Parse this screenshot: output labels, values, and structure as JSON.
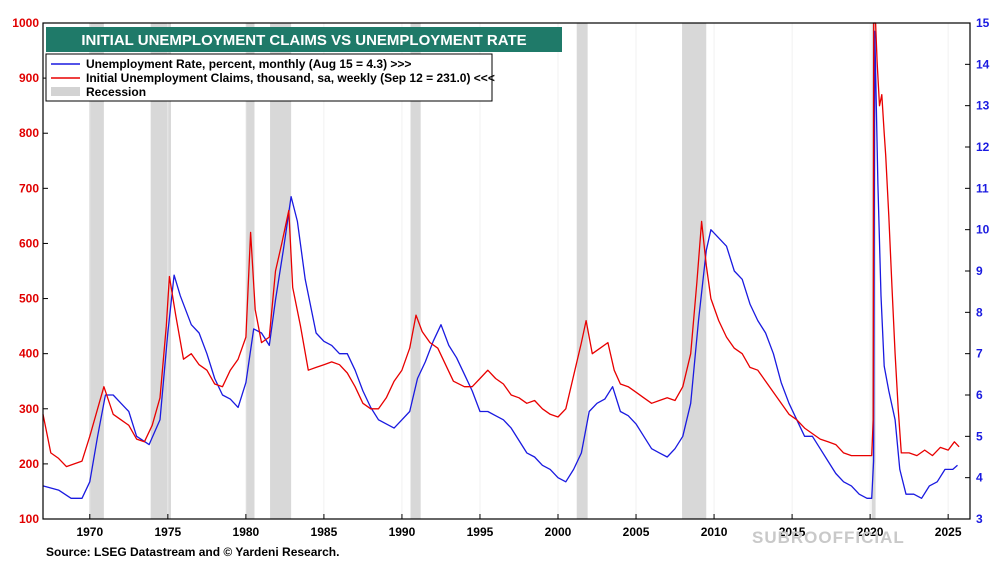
{
  "chart_data": {
    "type": "line",
    "title": "INITIAL UNEMPLOYMENT CLAIMS VS UNEMPLOYMENT RATE",
    "source": "Source: LSEG Datastream and © Yardeni Research.",
    "watermark": "SUBROOFFICIAL",
    "xlim": [
      1967,
      2026.4
    ],
    "ylim_left": [
      100,
      1000
    ],
    "ylim_right": [
      3,
      15
    ],
    "x_ticks": [
      {
        "label": "1970",
        "value": 1970
      },
      {
        "label": "1975",
        "value": 1975
      },
      {
        "label": "1980",
        "value": 1980
      },
      {
        "label": "1985",
        "value": 1985
      },
      {
        "label": "1990",
        "value": 1990
      },
      {
        "label": "1995",
        "value": 1995
      },
      {
        "label": "2000",
        "value": 2000
      },
      {
        "label": "2005",
        "value": 2005
      },
      {
        "label": "2010",
        "value": 2010
      },
      {
        "label": "2015",
        "value": 2015
      },
      {
        "label": "2020",
        "value": 2020
      },
      {
        "label": "2025",
        "value": 2025
      }
    ],
    "y_left_ticks": [
      {
        "label": "100",
        "value": 100
      },
      {
        "label": "200",
        "value": 200
      },
      {
        "label": "300",
        "value": 300
      },
      {
        "label": "400",
        "value": 400
      },
      {
        "label": "500",
        "value": 500
      },
      {
        "label": "600",
        "value": 600
      },
      {
        "label": "700",
        "value": 700
      },
      {
        "label": "800",
        "value": 800
      },
      {
        "label": "900",
        "value": 900
      },
      {
        "label": "1000",
        "value": 1000
      }
    ],
    "y_right_ticks": [
      {
        "label": "3",
        "value": 3
      },
      {
        "label": "4",
        "value": 4
      },
      {
        "label": "5",
        "value": 5
      },
      {
        "label": "6",
        "value": 6
      },
      {
        "label": "7",
        "value": 7
      },
      {
        "label": "8",
        "value": 8
      },
      {
        "label": "9",
        "value": 9
      },
      {
        "label": "10",
        "value": 10
      },
      {
        "label": "11",
        "value": 11
      },
      {
        "label": "12",
        "value": 12
      },
      {
        "label": "13",
        "value": 13
      },
      {
        "label": "14",
        "value": 14
      },
      {
        "label": "15",
        "value": 15
      }
    ],
    "legend": [
      {
        "label": "Unemployment Rate, percent, monthly (Aug 15 = 4.3) >>>",
        "color": "#1a1ae0",
        "kind": "line"
      },
      {
        "label": "Initial Unemployment Claims, thousand, sa, weekly (Sep 12 = 231.0) <<<",
        "color": "#e80000",
        "kind": "line"
      },
      {
        "label": "Recession",
        "color": "#d3d3d3",
        "kind": "band"
      }
    ],
    "recessions": [
      [
        1969.95,
        1970.9
      ],
      [
        1973.9,
        1975.2
      ],
      [
        1980.0,
        1980.55
      ],
      [
        1981.55,
        1982.9
      ],
      [
        1990.55,
        1991.2
      ],
      [
        2001.2,
        2001.9
      ],
      [
        2007.95,
        2009.5
      ],
      [
        2020.1,
        2020.35
      ]
    ],
    "series": [
      {
        "name": "Unemployment Rate, percent, monthly",
        "axis": "right",
        "color": "#1a1ae0",
        "points": [
          [
            1967.0,
            3.8
          ],
          [
            1968.0,
            3.7
          ],
          [
            1968.8,
            3.5
          ],
          [
            1969.5,
            3.5
          ],
          [
            1970.0,
            3.9
          ],
          [
            1970.5,
            5.0
          ],
          [
            1971.0,
            6.0
          ],
          [
            1971.5,
            6.0
          ],
          [
            1972.0,
            5.8
          ],
          [
            1972.5,
            5.6
          ],
          [
            1973.0,
            5.0
          ],
          [
            1973.8,
            4.8
          ],
          [
            1974.5,
            5.4
          ],
          [
            1975.0,
            7.5
          ],
          [
            1975.4,
            8.9
          ],
          [
            1975.8,
            8.4
          ],
          [
            1976.5,
            7.7
          ],
          [
            1977.0,
            7.5
          ],
          [
            1977.5,
            7.0
          ],
          [
            1978.0,
            6.4
          ],
          [
            1978.5,
            6.0
          ],
          [
            1979.0,
            5.9
          ],
          [
            1979.5,
            5.7
          ],
          [
            1980.0,
            6.3
          ],
          [
            1980.5,
            7.6
          ],
          [
            1981.0,
            7.5
          ],
          [
            1981.5,
            7.2
          ],
          [
            1981.9,
            8.3
          ],
          [
            1982.4,
            9.5
          ],
          [
            1982.9,
            10.8
          ],
          [
            1983.3,
            10.2
          ],
          [
            1983.8,
            8.8
          ],
          [
            1984.5,
            7.5
          ],
          [
            1985.0,
            7.3
          ],
          [
            1985.5,
            7.2
          ],
          [
            1986.0,
            7.0
          ],
          [
            1986.5,
            7.0
          ],
          [
            1987.0,
            6.6
          ],
          [
            1987.5,
            6.1
          ],
          [
            1988.0,
            5.7
          ],
          [
            1988.5,
            5.4
          ],
          [
            1989.0,
            5.3
          ],
          [
            1989.5,
            5.2
          ],
          [
            1990.0,
            5.4
          ],
          [
            1990.5,
            5.6
          ],
          [
            1991.0,
            6.4
          ],
          [
            1991.5,
            6.8
          ],
          [
            1992.0,
            7.3
          ],
          [
            1992.5,
            7.7
          ],
          [
            1993.0,
            7.2
          ],
          [
            1993.5,
            6.9
          ],
          [
            1994.0,
            6.5
          ],
          [
            1994.5,
            6.1
          ],
          [
            1995.0,
            5.6
          ],
          [
            1995.5,
            5.6
          ],
          [
            1996.0,
            5.5
          ],
          [
            1996.5,
            5.4
          ],
          [
            1997.0,
            5.2
          ],
          [
            1997.5,
            4.9
          ],
          [
            1998.0,
            4.6
          ],
          [
            1998.5,
            4.5
          ],
          [
            1999.0,
            4.3
          ],
          [
            1999.5,
            4.2
          ],
          [
            2000.0,
            4.0
          ],
          [
            2000.5,
            3.9
          ],
          [
            2001.0,
            4.2
          ],
          [
            2001.5,
            4.6
          ],
          [
            2002.0,
            5.6
          ],
          [
            2002.5,
            5.8
          ],
          [
            2003.0,
            5.9
          ],
          [
            2003.5,
            6.2
          ],
          [
            2004.0,
            5.6
          ],
          [
            2004.5,
            5.5
          ],
          [
            2005.0,
            5.3
          ],
          [
            2005.5,
            5.0
          ],
          [
            2006.0,
            4.7
          ],
          [
            2006.5,
            4.6
          ],
          [
            2007.0,
            4.5
          ],
          [
            2007.5,
            4.7
          ],
          [
            2008.0,
            5.0
          ],
          [
            2008.5,
            5.8
          ],
          [
            2009.0,
            7.8
          ],
          [
            2009.5,
            9.5
          ],
          [
            2009.8,
            10.0
          ],
          [
            2010.3,
            9.8
          ],
          [
            2010.8,
            9.6
          ],
          [
            2011.3,
            9.0
          ],
          [
            2011.8,
            8.8
          ],
          [
            2012.3,
            8.2
          ],
          [
            2012.8,
            7.8
          ],
          [
            2013.3,
            7.5
          ],
          [
            2013.8,
            7.0
          ],
          [
            2014.3,
            6.3
          ],
          [
            2014.8,
            5.8
          ],
          [
            2015.3,
            5.4
          ],
          [
            2015.8,
            5.0
          ],
          [
            2016.3,
            5.0
          ],
          [
            2016.8,
            4.7
          ],
          [
            2017.3,
            4.4
          ],
          [
            2017.8,
            4.1
          ],
          [
            2018.3,
            3.9
          ],
          [
            2018.8,
            3.8
          ],
          [
            2019.3,
            3.6
          ],
          [
            2019.8,
            3.5
          ],
          [
            2020.1,
            3.5
          ],
          [
            2020.22,
            4.4
          ],
          [
            2020.3,
            14.8
          ],
          [
            2020.5,
            11.1
          ],
          [
            2020.7,
            8.4
          ],
          [
            2020.9,
            6.7
          ],
          [
            2021.2,
            6.1
          ],
          [
            2021.6,
            5.4
          ],
          [
            2021.9,
            4.2
          ],
          [
            2022.3,
            3.6
          ],
          [
            2022.8,
            3.6
          ],
          [
            2023.3,
            3.5
          ],
          [
            2023.8,
            3.8
          ],
          [
            2024.3,
            3.9
          ],
          [
            2024.8,
            4.2
          ],
          [
            2025.3,
            4.2
          ],
          [
            2025.6,
            4.3
          ]
        ]
      },
      {
        "name": "Initial Unemployment Claims, thousand, sa, weekly",
        "axis": "left",
        "color": "#e80000",
        "points": [
          [
            1967.0,
            290
          ],
          [
            1967.5,
            220
          ],
          [
            1968.0,
            210
          ],
          [
            1968.5,
            195
          ],
          [
            1969.0,
            200
          ],
          [
            1969.5,
            205
          ],
          [
            1970.0,
            250
          ],
          [
            1970.5,
            300
          ],
          [
            1970.9,
            340
          ],
          [
            1971.5,
            290
          ],
          [
            1972.0,
            280
          ],
          [
            1972.5,
            270
          ],
          [
            1973.0,
            245
          ],
          [
            1973.5,
            240
          ],
          [
            1974.0,
            270
          ],
          [
            1974.5,
            320
          ],
          [
            1974.9,
            450
          ],
          [
            1975.1,
            540
          ],
          [
            1975.5,
            470
          ],
          [
            1976.0,
            390
          ],
          [
            1976.5,
            400
          ],
          [
            1977.0,
            380
          ],
          [
            1977.5,
            370
          ],
          [
            1978.0,
            345
          ],
          [
            1978.5,
            340
          ],
          [
            1979.0,
            370
          ],
          [
            1979.5,
            390
          ],
          [
            1980.0,
            430
          ],
          [
            1980.3,
            620
          ],
          [
            1980.6,
            480
          ],
          [
            1981.0,
            420
          ],
          [
            1981.5,
            430
          ],
          [
            1981.9,
            550
          ],
          [
            1982.3,
            600
          ],
          [
            1982.75,
            660
          ],
          [
            1983.0,
            520
          ],
          [
            1983.5,
            450
          ],
          [
            1984.0,
            370
          ],
          [
            1984.5,
            375
          ],
          [
            1985.0,
            380
          ],
          [
            1985.5,
            385
          ],
          [
            1986.0,
            380
          ],
          [
            1986.5,
            365
          ],
          [
            1987.0,
            340
          ],
          [
            1987.5,
            310
          ],
          [
            1988.0,
            300
          ],
          [
            1988.5,
            300
          ],
          [
            1989.0,
            320
          ],
          [
            1989.5,
            350
          ],
          [
            1990.0,
            370
          ],
          [
            1990.5,
            410
          ],
          [
            1990.9,
            470
          ],
          [
            1991.3,
            440
          ],
          [
            1991.8,
            420
          ],
          [
            1992.3,
            410
          ],
          [
            1992.8,
            380
          ],
          [
            1993.3,
            350
          ],
          [
            1994.0,
            340
          ],
          [
            1994.5,
            340
          ],
          [
            1995.0,
            355
          ],
          [
            1995.5,
            370
          ],
          [
            1996.0,
            355
          ],
          [
            1996.5,
            345
          ],
          [
            1997.0,
            325
          ],
          [
            1997.5,
            320
          ],
          [
            1998.0,
            310
          ],
          [
            1998.5,
            315
          ],
          [
            1999.0,
            300
          ],
          [
            1999.5,
            290
          ],
          [
            2000.0,
            285
          ],
          [
            2000.5,
            300
          ],
          [
            2001.0,
            360
          ],
          [
            2001.5,
            420
          ],
          [
            2001.8,
            460
          ],
          [
            2002.2,
            400
          ],
          [
            2002.7,
            410
          ],
          [
            2003.2,
            420
          ],
          [
            2003.6,
            370
          ],
          [
            2004.0,
            345
          ],
          [
            2004.5,
            340
          ],
          [
            2005.0,
            330
          ],
          [
            2005.5,
            320
          ],
          [
            2006.0,
            310
          ],
          [
            2006.5,
            315
          ],
          [
            2007.0,
            320
          ],
          [
            2007.5,
            315
          ],
          [
            2008.0,
            340
          ],
          [
            2008.5,
            400
          ],
          [
            2008.9,
            530
          ],
          [
            2009.2,
            640
          ],
          [
            2009.5,
            560
          ],
          [
            2009.8,
            500
          ],
          [
            2010.3,
            460
          ],
          [
            2010.8,
            430
          ],
          [
            2011.3,
            410
          ],
          [
            2011.8,
            400
          ],
          [
            2012.3,
            375
          ],
          [
            2012.8,
            370
          ],
          [
            2013.3,
            350
          ],
          [
            2013.8,
            330
          ],
          [
            2014.3,
            310
          ],
          [
            2014.8,
            290
          ],
          [
            2015.3,
            280
          ],
          [
            2015.8,
            265
          ],
          [
            2016.3,
            255
          ],
          [
            2016.8,
            245
          ],
          [
            2017.3,
            240
          ],
          [
            2017.8,
            235
          ],
          [
            2018.3,
            220
          ],
          [
            2018.8,
            215
          ],
          [
            2019.3,
            215
          ],
          [
            2019.8,
            215
          ],
          [
            2020.1,
            215
          ],
          [
            2020.2,
            280
          ],
          [
            2020.23,
            1000
          ],
          [
            2020.35,
            1000
          ],
          [
            2020.45,
            930
          ],
          [
            2020.6,
            850
          ],
          [
            2020.75,
            870
          ],
          [
            2020.9,
            800
          ],
          [
            2021.0,
            760
          ],
          [
            2021.2,
            650
          ],
          [
            2021.4,
            520
          ],
          [
            2021.6,
            400
          ],
          [
            2021.8,
            300
          ],
          [
            2022.0,
            220
          ],
          [
            2022.5,
            220
          ],
          [
            2023.0,
            215
          ],
          [
            2023.5,
            225
          ],
          [
            2024.0,
            215
          ],
          [
            2024.5,
            230
          ],
          [
            2025.0,
            225
          ],
          [
            2025.4,
            240
          ],
          [
            2025.7,
            231
          ]
        ]
      }
    ]
  }
}
